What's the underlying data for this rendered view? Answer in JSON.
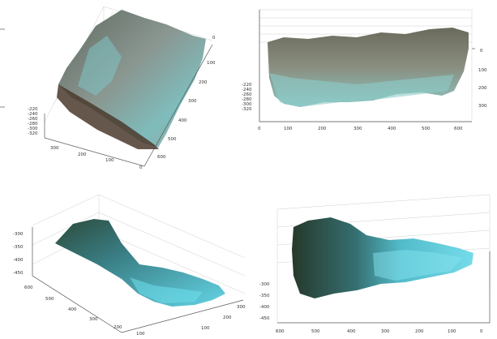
{
  "chart_data": [
    {
      "type": "surface3d",
      "title": "",
      "view": "oblique",
      "colors": {
        "surface_top": "#6f7a6c",
        "surface_mid": "#8fa79d",
        "surface_low": "#7fb8b8",
        "cliff": "#4a3a2c"
      },
      "x_ticks": [
        "300",
        "200",
        "100",
        "0"
      ],
      "y_ticks": [
        "0",
        "100",
        "200",
        "300",
        "400",
        "500",
        "600"
      ],
      "z_ticks": [
        "-220",
        "-240",
        "-260",
        "-280",
        "-300",
        "-320"
      ]
    },
    {
      "type": "surface3d",
      "title": "",
      "view": "side",
      "colors": {
        "surface_top": "#6b6c5e",
        "surface_mid": "#8e9483",
        "surface_low": "#8fc3c2"
      },
      "x_ticks": [
        "0",
        "100",
        "200",
        "300",
        "400",
        "500",
        "600"
      ],
      "right_ticks": [
        "0",
        "100",
        "200",
        "300"
      ],
      "z_ticks": [
        "-220",
        "-240",
        "-260",
        "-280",
        "-300",
        "-320"
      ]
    },
    {
      "type": "surface3d",
      "title": "",
      "view": "oblique",
      "colors": {
        "surface_top": "#2f4d3d",
        "surface_mid": "#3f8f96",
        "surface_low": "#5fd2e0"
      },
      "x_ticks": [
        "600",
        "500",
        "400",
        "300",
        "200",
        "100"
      ],
      "y_ticks": [
        "100",
        "200",
        "300"
      ],
      "z_ticks": [
        "-300",
        "-350",
        "-400",
        "-450"
      ]
    },
    {
      "type": "surface3d",
      "title": "",
      "view": "side",
      "colors": {
        "surface_top": "#2c3f30",
        "surface_mid": "#3c8c94",
        "surface_low": "#66d6e6"
      },
      "x_ticks": [
        "600",
        "500",
        "400",
        "300",
        "200",
        "100",
        "0"
      ],
      "z_ticks": [
        "-300",
        "-350",
        "-400",
        "-450"
      ]
    }
  ]
}
